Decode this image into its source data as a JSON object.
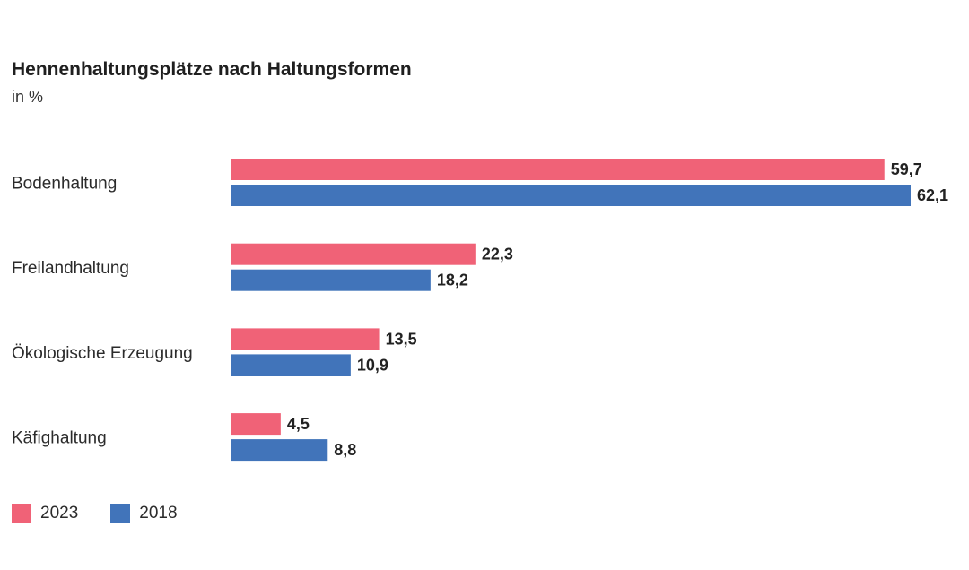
{
  "chart_data": {
    "type": "bar",
    "orientation": "horizontal",
    "title": "Hennenhaltungsplätze nach Haltungsformen",
    "subtitle": "in %",
    "categories": [
      "Bodenhaltung",
      "Freilandhaltung",
      "Ökologische Erzeugung",
      "Käfighaltung"
    ],
    "series": [
      {
        "name": "2023",
        "color": "#f06277",
        "values": [
          59.7,
          22.3,
          13.5,
          4.5
        ],
        "labels": [
          "59,7",
          "22,3",
          "13,5",
          "4,5"
        ]
      },
      {
        "name": "2018",
        "color": "#4174ba",
        "values": [
          62.1,
          18.2,
          10.9,
          8.8
        ],
        "labels": [
          "62,1",
          "18,2",
          "10,9",
          "8,8"
        ]
      }
    ],
    "xlim": [
      0,
      62.1
    ],
    "grid": false,
    "legend_position": "bottom-left"
  }
}
